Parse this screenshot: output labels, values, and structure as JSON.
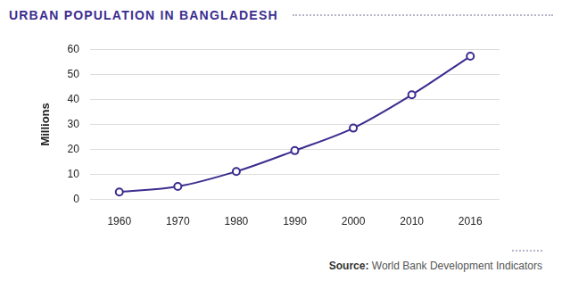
{
  "chart_data": {
    "type": "line",
    "title": "URBAN POPULATION IN BANGLADESH",
    "y_label": "Millions",
    "categories": [
      "1960",
      "1970",
      "1980",
      "1990",
      "2000",
      "2010",
      "2016"
    ],
    "values": [
      3.0,
      5.2,
      11.2,
      19.5,
      28.5,
      41.8,
      57.2
    ],
    "color": "#3b2d8f",
    "marker": "circle",
    "ylim": [
      0,
      60
    ],
    "yticks": [
      0,
      10,
      20,
      30,
      40,
      50,
      60
    ],
    "grid": true,
    "source": {
      "label": "Source:",
      "text": "World Bank Development Indicators"
    }
  }
}
